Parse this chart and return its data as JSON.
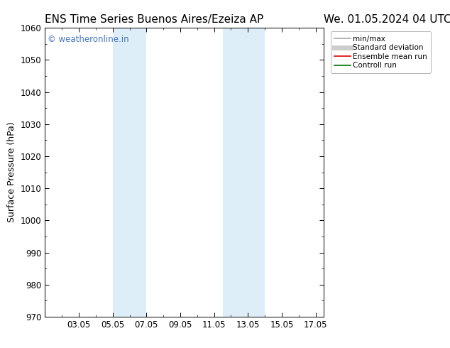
{
  "title_left": "ENS Time Series Buenos Aires/Ezeiza AP",
  "title_right": "We. 01.05.2024 04 UTC",
  "ylabel": "Surface Pressure (hPa)",
  "ylim": [
    970,
    1060
  ],
  "yticks": [
    970,
    980,
    990,
    1000,
    1010,
    1020,
    1030,
    1040,
    1050,
    1060
  ],
  "xlim": [
    0,
    16.5
  ],
  "xtick_labels": [
    "03.05",
    "05.05",
    "07.05",
    "09.05",
    "11.05",
    "13.05",
    "15.05",
    "17.05"
  ],
  "xtick_positions": [
    2,
    4,
    6,
    8,
    10,
    12,
    14,
    16
  ],
  "shaded_regions": [
    {
      "x_start": 4,
      "x_end": 6
    },
    {
      "x_start": 10.5,
      "x_end": 13
    }
  ],
  "shaded_color": "#ddeef8",
  "background_color": "#ffffff",
  "watermark_text": "© weatheronline.in",
  "watermark_color": "#4477bb",
  "legend_entries": [
    {
      "label": "min/max",
      "color": "#aaaaaa",
      "lw": 1.2
    },
    {
      "label": "Standard deviation",
      "color": "#cccccc",
      "lw": 5
    },
    {
      "label": "Ensemble mean run",
      "color": "#dd0000",
      "lw": 1.2
    },
    {
      "label": "Controll run",
      "color": "#007700",
      "lw": 1.2
    }
  ],
  "title_fontsize": 11,
  "tick_fontsize": 8.5,
  "ylabel_fontsize": 9,
  "watermark_fontsize": 8.5,
  "legend_fontsize": 7.5
}
